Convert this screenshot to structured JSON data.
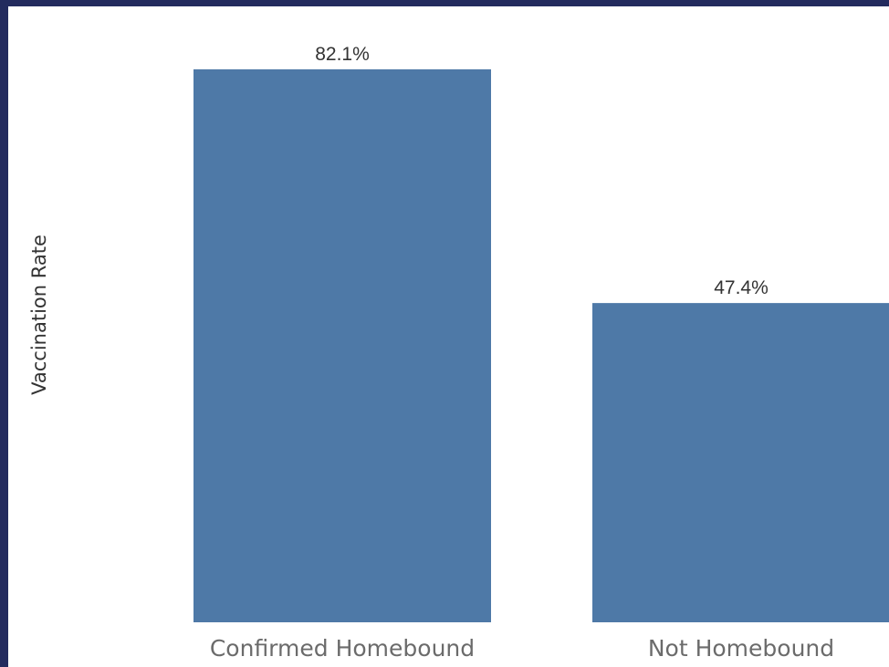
{
  "colors": {
    "frame": "#232b5e",
    "background": "#ffffff",
    "bar": "#4e79a7"
  },
  "chart_data": {
    "type": "bar",
    "title": "",
    "xlabel": "",
    "ylabel": "Vaccination Rate",
    "categories": [
      "Confirmed Homebound",
      "Not Homebound"
    ],
    "values": [
      82.1,
      47.4
    ],
    "value_labels": [
      "82.1%",
      "47.4%"
    ],
    "ylim": [
      0,
      82.1
    ],
    "grid": false,
    "legend": "none"
  }
}
